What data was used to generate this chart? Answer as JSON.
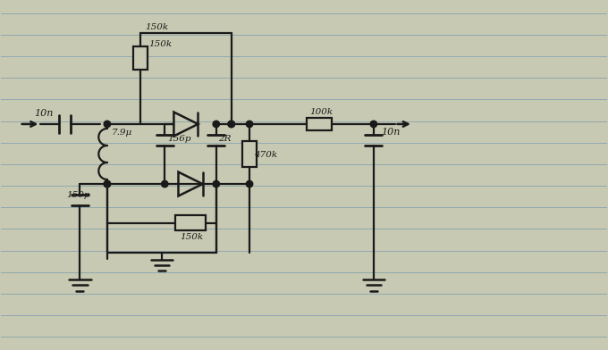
{
  "bg_color": "#c8c9b2",
  "line_color": "#1a1a1a",
  "line_width": 1.6,
  "ruled_color": "#5588aa",
  "labels": {
    "10n_left": "10n",
    "7_9u": "7.9μ",
    "150k_top": "150k",
    "156p": "156p",
    "2R": "2R",
    "100k": "100k",
    "470k": "470k",
    "10n_right": "10n",
    "150p": "150p",
    "150k_bot": "150k"
  },
  "figsize": [
    6.8,
    3.92
  ],
  "dpi": 100
}
